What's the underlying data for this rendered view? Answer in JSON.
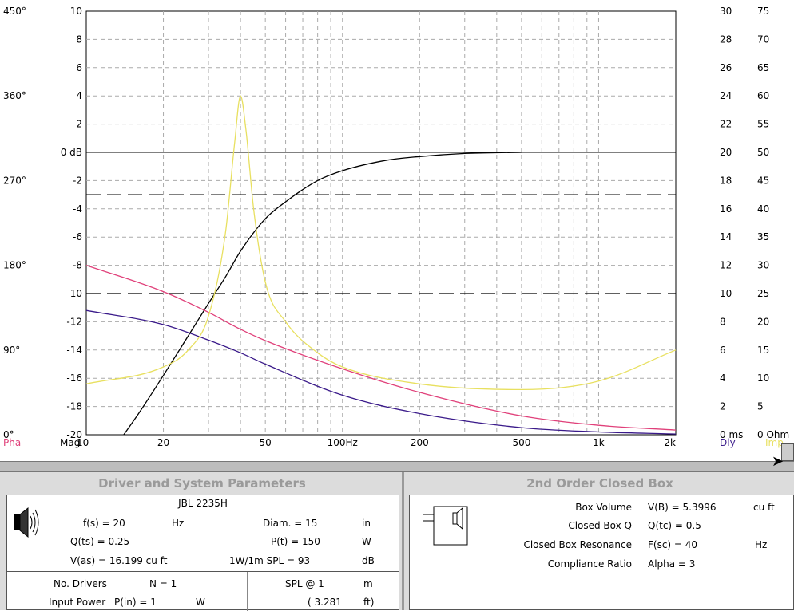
{
  "chart": {
    "mag_ticks": [
      "10",
      "8",
      "6",
      "4",
      "2",
      "0 dB",
      "-2",
      "-4",
      "-6",
      "-8",
      "-10",
      "-12",
      "-14",
      "-16",
      "-18",
      "-20"
    ],
    "phase_ticks": [
      "450°",
      "360°",
      "270°",
      "180°",
      "90°",
      "0°"
    ],
    "delay_ticks": [
      "30",
      "28",
      "26",
      "24",
      "22",
      "20",
      "18",
      "16",
      "14",
      "12",
      "10",
      "8",
      "6",
      "4",
      "2",
      "0 ms"
    ],
    "impedance_ticks": [
      "75",
      "70",
      "65",
      "60",
      "55",
      "50",
      "45",
      "40",
      "35",
      "30",
      "25",
      "20",
      "15",
      "10",
      "5",
      "0 Ohm"
    ],
    "freq_ticks": [
      "10",
      "20",
      "50",
      "100Hz",
      "200",
      "500",
      "1k",
      "2k"
    ],
    "legend": {
      "pha": "Pha",
      "mag": "Mag",
      "dly": "Dly",
      "imp": "Imp"
    },
    "colors": {
      "magnitude": "#000000",
      "phase": "#e0407a",
      "delay": "#3a1a8a",
      "impedance": "#e8e060"
    }
  },
  "chart_data": {
    "type": "line",
    "xscale": "log",
    "xlim": [
      10,
      2000
    ],
    "ylim": [
      -20,
      10
    ],
    "series": [
      {
        "name": "Mag",
        "x": [
          14,
          16,
          20,
          25,
          30,
          35,
          40,
          50,
          60,
          80,
          100,
          150,
          200,
          300,
          500
        ],
        "y": [
          -20,
          -18.5,
          -15.8,
          -13,
          -10.7,
          -8.8,
          -7,
          -4.7,
          -3.5,
          -2,
          -1.3,
          -0.55,
          -0.3,
          -0.08,
          0
        ]
      },
      {
        "name": "Pha",
        "axis": "phase",
        "x": [
          10,
          20,
          30,
          40,
          50,
          100,
          200,
          500,
          1000,
          2000
        ],
        "y": [
          180,
          152,
          130,
          112,
          100,
          70,
          45,
          20,
          10,
          5
        ]
      },
      {
        "name": "Dly",
        "axis": "delay",
        "x": [
          10,
          20,
          30,
          40,
          50,
          100,
          200,
          500,
          1000,
          2000
        ],
        "y": [
          8.8,
          7.8,
          6.7,
          5.8,
          5,
          2.8,
          1.5,
          0.5,
          0.2,
          0.05
        ]
      },
      {
        "name": "Imp",
        "axis": "impedance",
        "x": [
          10,
          20,
          25,
          30,
          35,
          38,
          40,
          42,
          45,
          50,
          60,
          80,
          100,
          200,
          500,
          1000,
          2000
        ],
        "y": [
          9,
          12,
          15,
          21,
          36,
          52,
          60,
          54,
          40,
          27,
          20,
          14.5,
          12,
          9,
          8,
          9.5,
          15
        ]
      }
    ]
  },
  "driver": {
    "title": "Driver and System Parameters",
    "model": "JBL  2235H",
    "fs": "f(s) = 20",
    "fs_unit": "Hz",
    "qts": "Q(ts) = 0.25",
    "vas": "V(as) = 16.199 cu ft",
    "diam": "Diam. = 15",
    "diam_unit": "in",
    "pt": "P(t) = 150",
    "pt_unit": "W",
    "spl": "1W/1m SPL = 93",
    "spl_unit": "dB",
    "n_label": "No. Drivers",
    "n_value": "N = 1",
    "power_label": "Input Power",
    "power_value": "P(in) = 1",
    "power_unit": "W",
    "spl_at": "SPL @ 1",
    "spl_at_unit": "m",
    "dist": "( 3.281",
    "dist_unit": "ft)"
  },
  "box": {
    "title": "2nd Order Closed Box",
    "vb_label": "Box Volume",
    "vb_value": "V(B) = 5.3996",
    "vb_unit": "cu ft",
    "qtc_label": "Closed Box Q",
    "qtc_value": "Q(tc) = 0.5",
    "fsc_label": "Closed Box Resonance",
    "fsc_value": "F(sc) = 40",
    "fsc_unit": "Hz",
    "alpha_label": "Compliance Ratio",
    "alpha_value": "Alpha = 3"
  }
}
